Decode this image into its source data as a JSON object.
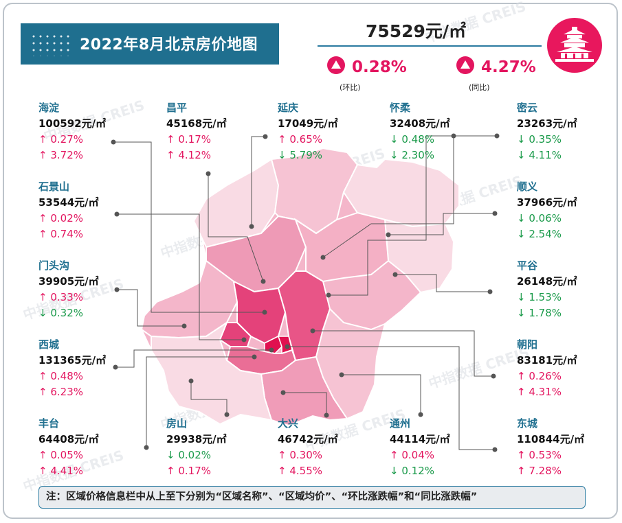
{
  "header": {
    "title": "2022年8月北京房价地图",
    "avg_price": "75529元/㎡",
    "mom_value": "0.28%",
    "mom_label": "(环比)",
    "yoy_value": "4.27%",
    "yoy_label": "(同比)"
  },
  "regions": {
    "haidian": {
      "name": "海淀",
      "price": "100592元/㎡",
      "mom": "↑ 0.27%",
      "yoy": "↑ 3.72%"
    },
    "changping": {
      "name": "昌平",
      "price": "45168元/㎡",
      "mom": "↑ 0.17%",
      "yoy": "↑ 4.12%"
    },
    "yanqing": {
      "name": "延庆",
      "price": "17049元/㎡",
      "mom": "↑ 0.65%",
      "yoy": "↓ 5.79%"
    },
    "huairou": {
      "name": "怀柔",
      "price": "32408元/㎡",
      "mom": "↓ 0.48%",
      "yoy": "↓ 2.30%"
    },
    "miyun": {
      "name": "密云",
      "price": "23263元/㎡",
      "mom": "↓ 0.35%",
      "yoy": "↓ 4.11%"
    },
    "shijingshan": {
      "name": "石景山",
      "price": "53544元/㎡",
      "mom": "↑ 0.02%",
      "yoy": "↑ 0.74%"
    },
    "shunyi": {
      "name": "顺义",
      "price": "37966元/㎡",
      "mom": "↓ 0.06%",
      "yoy": "↓ 2.54%"
    },
    "mentougou": {
      "name": "门头沟",
      "price": "39905元/㎡",
      "mom": "↑ 0.33%",
      "yoy": "↓ 0.32%"
    },
    "pinggu": {
      "name": "平谷",
      "price": "26148元/㎡",
      "mom": "↓ 1.53%",
      "yoy": "↓ 1.78%"
    },
    "xicheng": {
      "name": "西城",
      "price": "131365元/㎡",
      "mom": "↑ 0.48%",
      "yoy": "↑ 6.23%"
    },
    "chaoyang": {
      "name": "朝阳",
      "price": "83181元/㎡",
      "mom": "↑ 0.26%",
      "yoy": "↑ 4.31%"
    },
    "fengtai": {
      "name": "丰台",
      "price": "64408元/㎡",
      "mom": "↑ 0.05%",
      "yoy": "↑ 4.41%"
    },
    "fangshan": {
      "name": "房山",
      "price": "29938元/㎡",
      "mom": "↓ 0.02%",
      "yoy": "↑ 0.17%"
    },
    "daxing": {
      "name": "大兴",
      "price": "46742元/㎡",
      "mom": "↑ 0.30%",
      "yoy": "↑ 4.55%"
    },
    "tongzhou": {
      "name": "通州",
      "price": "44114元/㎡",
      "mom": "↑ 0.04%",
      "yoy": "↓ 0.12%"
    },
    "dongcheng": {
      "name": "东城",
      "price": "110844元/㎡",
      "mom": "↑ 0.53%",
      "yoy": "↑ 7.28%"
    }
  },
  "note": "注：区域价格信息栏中从上至下分别为“区域名称”、“区域均价”、“环比涨跌幅”和“同比涨跌幅”",
  "watermark": "中指数据 CREIS",
  "colors": {
    "accent_blue": "#1f6f8f",
    "up_red": "#e3155f",
    "down_green": "#1a9a4a",
    "map_lightest": "#f9dbe4",
    "map_light": "#f4b6ca",
    "map_mid": "#ee8fae",
    "map_dark": "#e4427a",
    "map_darkest": "#e0104f"
  },
  "icons": {
    "logo": "temple-of-heaven-icon",
    "arrow": "triangle-up-icon"
  }
}
